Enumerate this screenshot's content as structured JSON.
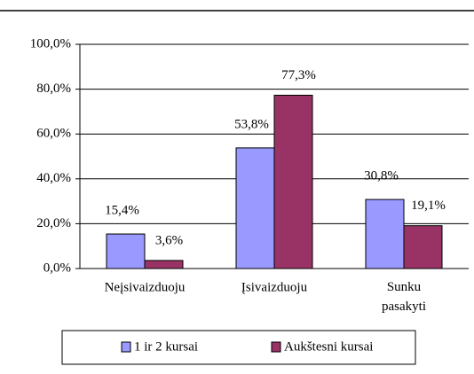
{
  "chart_data": {
    "type": "bar",
    "categories": [
      "Neįsivaizduoju",
      "Įsivaizduoju",
      "Sunku pasakyti"
    ],
    "series": [
      {
        "name": "1 ir 2 kursai",
        "color": "#9999ff",
        "values": [
          15.4,
          53.8,
          30.8
        ],
        "value_labels": [
          "15,4%",
          "53,8%",
          "30,8%"
        ]
      },
      {
        "name": "Aukštesni kursai",
        "color": "#993366",
        "values": [
          3.6,
          77.3,
          19.1
        ],
        "value_labels": [
          "3,6%",
          "77,3%",
          "19,1%"
        ]
      }
    ],
    "ylim": [
      0,
      100
    ],
    "yticks": [
      {
        "value": 0,
        "label": "0,0%"
      },
      {
        "value": 20,
        "label": "20,0%"
      },
      {
        "value": 40,
        "label": "40,0%"
      },
      {
        "value": 60,
        "label": "60,0%"
      },
      {
        "value": 80,
        "label": "80,0%"
      },
      {
        "value": 100,
        "label": "100,0%"
      }
    ],
    "grid": true,
    "legend": "bottom"
  }
}
